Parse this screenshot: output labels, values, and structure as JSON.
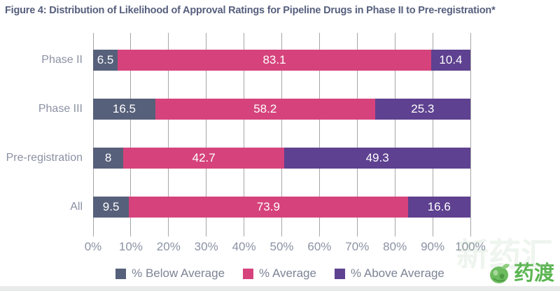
{
  "title": "Figure 4: Distribution of Likelihood of Approval Ratings for Pipeline Drugs in Phase II to Pre-registration*",
  "chart_data": {
    "type": "bar",
    "orientation": "horizontal",
    "stacked": true,
    "title": "Figure 4: Distribution of Likelihood of Approval Ratings for Pipeline Drugs in Phase II to Pre-registration*",
    "categories": [
      "Phase II",
      "Phase III",
      "Pre-registration",
      "All"
    ],
    "series": [
      {
        "name": "% Below Average",
        "color": "#56607a",
        "values": [
          6.5,
          16.5,
          8,
          9.5
        ]
      },
      {
        "name": "% Average",
        "color": "#d6437c",
        "values": [
          83.1,
          58.2,
          42.7,
          73.9
        ]
      },
      {
        "name": "% Above Average",
        "color": "#5e4190",
        "values": [
          10.4,
          25.3,
          49.3,
          16.6
        ]
      }
    ],
    "xlim": [
      0,
      100
    ],
    "x_ticks": [
      "0%",
      "10%",
      "20%",
      "30%",
      "40%",
      "50%",
      "60%",
      "70%",
      "80%",
      "90%",
      "100%"
    ],
    "grid": "vertical",
    "legend_position": "bottom",
    "bar_label_color": "#ffffff",
    "axis_text_color": "#8b92a3"
  },
  "watermark": {
    "brand_text": "药渡",
    "ghost_text": "新药汇",
    "brand_color": "#5cb552"
  }
}
